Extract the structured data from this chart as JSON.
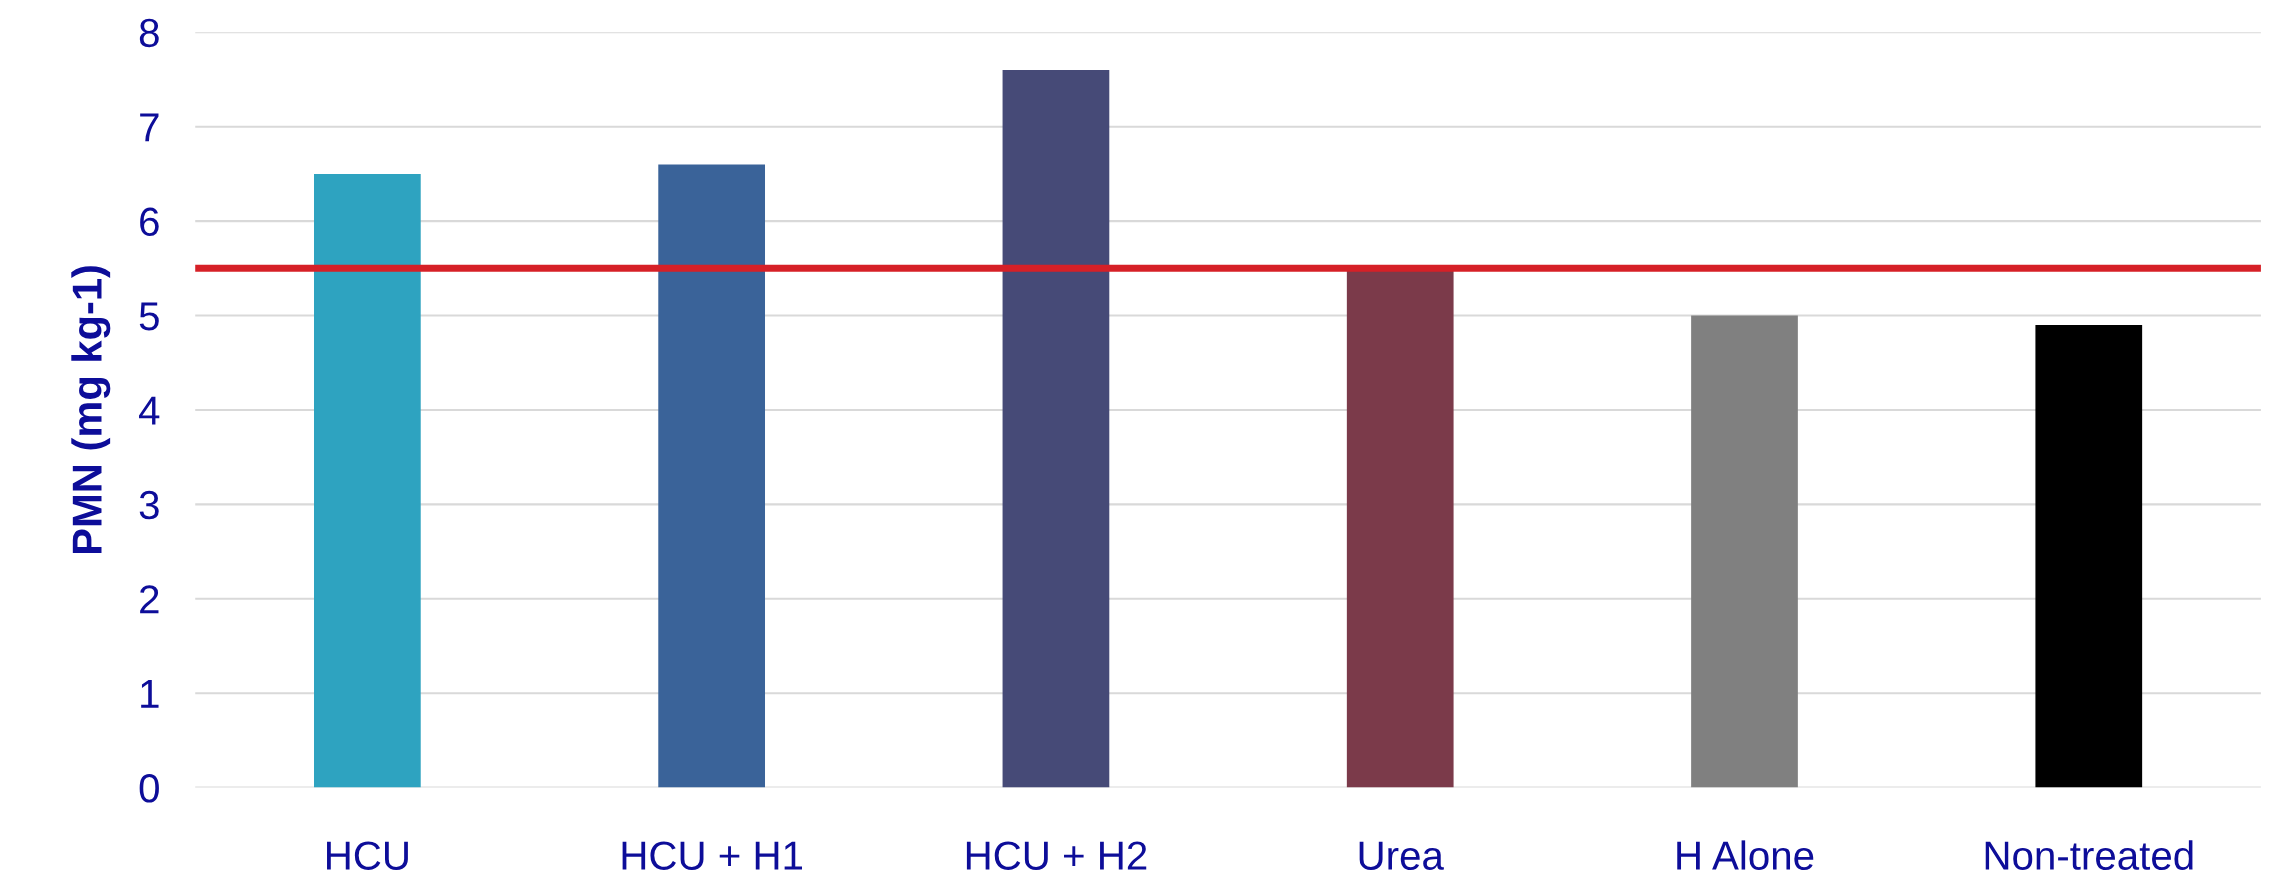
{
  "chart_data": {
    "type": "bar",
    "ylabel": "PMN (mg kg-1)",
    "categories": [
      "HCU",
      "HCU + H1",
      "HCU + H2",
      "Urea",
      "H Alone",
      "Non-treated"
    ],
    "values": [
      6.5,
      6.6,
      7.6,
      5.5,
      5.0,
      4.9
    ],
    "colors": [
      "#2ea3c0",
      "#3a6399",
      "#464a77",
      "#7b3a4a",
      "#808080",
      "#000000"
    ],
    "ylim": [
      0,
      8
    ],
    "yticks": [
      0,
      1,
      2,
      3,
      4,
      5,
      6,
      7,
      8
    ],
    "grid": "y",
    "ref_lines": [
      {
        "axis": "y",
        "value": 5.5,
        "color": "#d62027",
        "line_style": "solid"
      }
    ]
  }
}
